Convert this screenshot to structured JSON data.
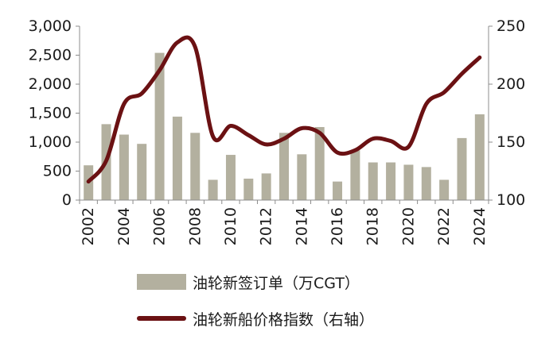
{
  "chart_data": {
    "type": "bar",
    "x": [
      2002,
      2003,
      2004,
      2005,
      2006,
      2007,
      2008,
      2009,
      2010,
      2011,
      2012,
      2013,
      2014,
      2015,
      2016,
      2017,
      2018,
      2019,
      2020,
      2021,
      2022,
      2023,
      2024
    ],
    "x_tick_labels": [
      "2002",
      "2004",
      "2006",
      "2008",
      "2010",
      "2012",
      "2014",
      "2016",
      "2018",
      "2020",
      "2022",
      "2024"
    ],
    "series": [
      {
        "name": "油轮新签订单（万CGT）",
        "type": "bar",
        "axis": "left",
        "color": "#b3b09f",
        "values": [
          600,
          1310,
          1130,
          970,
          2540,
          1440,
          1160,
          350,
          780,
          370,
          460,
          1160,
          790,
          1260,
          320,
          860,
          650,
          650,
          610,
          570,
          350,
          1070,
          1480
        ]
      },
      {
        "name": "油轮新船价格指数（右轴）",
        "type": "line",
        "axis": "right",
        "color": "#6b1113",
        "values": [
          116,
          134,
          183,
          192,
          212,
          236,
          232,
          155,
          164,
          156,
          148,
          153,
          162,
          158,
          141,
          143,
          153,
          151,
          146,
          183,
          193,
          209,
          223
        ]
      }
    ],
    "y_left": {
      "min": 0,
      "max": 3000,
      "ticks": [
        0,
        500,
        1000,
        1500,
        2000,
        2500,
        3000
      ],
      "tick_labels": [
        "0",
        "500",
        "1,000",
        "1,500",
        "2,000",
        "2,500",
        "3,000"
      ]
    },
    "y_right": {
      "min": 100,
      "max": 250,
      "ticks": [
        100,
        150,
        200,
        250
      ],
      "tick_labels": [
        "100",
        "150",
        "200",
        "250"
      ]
    },
    "grid": false,
    "legend_position": "bottom"
  }
}
